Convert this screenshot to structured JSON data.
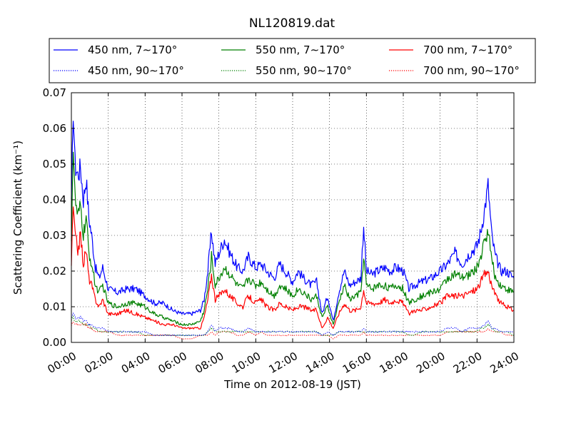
{
  "chart_data": {
    "type": "line",
    "title": "NL120819.dat",
    "xlabel": "Time on 2012-08-19 (JST)",
    "ylabel": "Scattering Coefficient (km⁻¹)",
    "xlim": [
      "00:00",
      "24:00"
    ],
    "ylim": [
      0,
      0.07
    ],
    "grid": true,
    "legend_position": "top, above plot, 3 columns",
    "x_ticks": [
      "00:00",
      "02:00",
      "04:00",
      "06:00",
      "08:00",
      "10:00",
      "12:00",
      "14:00",
      "16:00",
      "18:00",
      "20:00",
      "22:00",
      "24:00"
    ],
    "y_ticks": [
      "0.00",
      "0.01",
      "0.02",
      "0.03",
      "0.04",
      "0.05",
      "0.06",
      "0.07"
    ],
    "y_tick_values": [
      0,
      0.01,
      0.02,
      0.03,
      0.04,
      0.05,
      0.06,
      0.07
    ],
    "x_hours": [
      0,
      0.1,
      0.2,
      0.35,
      0.5,
      0.65,
      0.8,
      0.95,
      1.1,
      1.3,
      1.5,
      1.7,
      2,
      2.5,
      3,
      3.5,
      4,
      4.5,
      5,
      5.5,
      6,
      6.5,
      7,
      7.2,
      7.4,
      7.6,
      7.8,
      8,
      8.3,
      8.6,
      9,
      9.3,
      9.6,
      10,
      10.3,
      10.6,
      11,
      11.3,
      11.6,
      12,
      12.3,
      12.6,
      13,
      13.3,
      13.6,
      13.9,
      14.2,
      14.5,
      14.8,
      15.1,
      15.4,
      15.7,
      15.85,
      16,
      16.3,
      16.6,
      17,
      17.3,
      17.6,
      18,
      18.3,
      18.6,
      19,
      19.5,
      20,
      20.4,
      20.8,
      21.2,
      21.6,
      22,
      22.2,
      22.4,
      22.6,
      22.8,
      23,
      23.3,
      23.6,
      24
    ],
    "series": [
      {
        "name": "450 nm, 7∼170°",
        "color": "#0000ff",
        "linestyle": "solid",
        "values": [
          0.038,
          0.066,
          0.05,
          0.047,
          0.049,
          0.04,
          0.046,
          0.035,
          0.03,
          0.021,
          0.018,
          0.021,
          0.015,
          0.014,
          0.015,
          0.015,
          0.013,
          0.011,
          0.011,
          0.009,
          0.008,
          0.008,
          0.009,
          0.012,
          0.02,
          0.031,
          0.022,
          0.025,
          0.029,
          0.025,
          0.021,
          0.02,
          0.024,
          0.021,
          0.022,
          0.02,
          0.018,
          0.022,
          0.02,
          0.017,
          0.02,
          0.018,
          0.016,
          0.017,
          0.008,
          0.013,
          0.006,
          0.014,
          0.02,
          0.016,
          0.017,
          0.018,
          0.033,
          0.02,
          0.019,
          0.02,
          0.021,
          0.02,
          0.021,
          0.02,
          0.015,
          0.016,
          0.017,
          0.018,
          0.02,
          0.022,
          0.025,
          0.022,
          0.025,
          0.027,
          0.031,
          0.037,
          0.044,
          0.03,
          0.024,
          0.02,
          0.02,
          0.018
        ]
      },
      {
        "name": "550 nm, 7∼170°",
        "color": "#008000",
        "linestyle": "solid",
        "values": [
          0.03,
          0.055,
          0.04,
          0.035,
          0.038,
          0.03,
          0.035,
          0.025,
          0.022,
          0.016,
          0.014,
          0.016,
          0.011,
          0.01,
          0.011,
          0.011,
          0.01,
          0.008,
          0.007,
          0.006,
          0.005,
          0.005,
          0.006,
          0.009,
          0.015,
          0.024,
          0.016,
          0.018,
          0.021,
          0.019,
          0.016,
          0.015,
          0.018,
          0.016,
          0.017,
          0.015,
          0.013,
          0.016,
          0.015,
          0.013,
          0.015,
          0.014,
          0.012,
          0.013,
          0.007,
          0.01,
          0.005,
          0.011,
          0.016,
          0.012,
          0.013,
          0.014,
          0.024,
          0.016,
          0.015,
          0.016,
          0.016,
          0.015,
          0.016,
          0.015,
          0.011,
          0.012,
          0.013,
          0.014,
          0.015,
          0.018,
          0.019,
          0.018,
          0.019,
          0.021,
          0.024,
          0.028,
          0.032,
          0.023,
          0.018,
          0.016,
          0.015,
          0.014
        ]
      },
      {
        "name": "700 nm, 7∼170°",
        "color": "#ff0000",
        "linestyle": "solid",
        "values": [
          0.022,
          0.038,
          0.03,
          0.026,
          0.03,
          0.022,
          0.026,
          0.018,
          0.016,
          0.012,
          0.01,
          0.012,
          0.008,
          0.008,
          0.009,
          0.008,
          0.007,
          0.006,
          0.005,
          0.005,
          0.004,
          0.004,
          0.004,
          0.007,
          0.012,
          0.019,
          0.012,
          0.013,
          0.015,
          0.013,
          0.011,
          0.01,
          0.013,
          0.011,
          0.012,
          0.01,
          0.009,
          0.011,
          0.01,
          0.009,
          0.01,
          0.01,
          0.009,
          0.009,
          0.004,
          0.007,
          0.004,
          0.008,
          0.011,
          0.009,
          0.009,
          0.01,
          0.015,
          0.011,
          0.011,
          0.011,
          0.012,
          0.011,
          0.012,
          0.011,
          0.008,
          0.009,
          0.009,
          0.01,
          0.011,
          0.013,
          0.013,
          0.013,
          0.014,
          0.015,
          0.017,
          0.019,
          0.02,
          0.016,
          0.013,
          0.011,
          0.01,
          0.009
        ]
      },
      {
        "name": "450 nm, 90∼170°",
        "color": "#0000ff",
        "linestyle": "dotted",
        "values": [
          0.007,
          0.008,
          0.007,
          0.007,
          0.007,
          0.006,
          0.006,
          0.005,
          0.005,
          0.004,
          0.004,
          0.004,
          0.003,
          0.003,
          0.003,
          0.003,
          0.003,
          0.002,
          0.002,
          0.002,
          0.002,
          0.002,
          0.002,
          0.002,
          0.003,
          0.005,
          0.003,
          0.004,
          0.004,
          0.004,
          0.003,
          0.003,
          0.004,
          0.003,
          0.003,
          0.003,
          0.003,
          0.003,
          0.003,
          0.003,
          0.003,
          0.003,
          0.003,
          0.003,
          0.002,
          0.003,
          0.002,
          0.003,
          0.003,
          0.003,
          0.003,
          0.003,
          0.004,
          0.003,
          0.003,
          0.003,
          0.003,
          0.003,
          0.003,
          0.003,
          0.003,
          0.003,
          0.003,
          0.003,
          0.003,
          0.004,
          0.004,
          0.003,
          0.004,
          0.004,
          0.004,
          0.005,
          0.006,
          0.004,
          0.004,
          0.003,
          0.003,
          0.003
        ]
      },
      {
        "name": "550 nm, 90∼170°",
        "color": "#008000",
        "linestyle": "dotted",
        "values": [
          0.006,
          0.007,
          0.006,
          0.006,
          0.006,
          0.005,
          0.005,
          0.005,
          0.004,
          0.004,
          0.003,
          0.003,
          0.003,
          0.003,
          0.003,
          0.003,
          0.002,
          0.002,
          0.002,
          0.002,
          0.002,
          0.002,
          0.002,
          0.002,
          0.003,
          0.004,
          0.003,
          0.003,
          0.003,
          0.003,
          0.003,
          0.003,
          0.003,
          0.003,
          0.003,
          0.003,
          0.003,
          0.003,
          0.003,
          0.003,
          0.003,
          0.003,
          0.003,
          0.003,
          0.002,
          0.002,
          0.002,
          0.003,
          0.003,
          0.003,
          0.003,
          0.003,
          0.003,
          0.003,
          0.003,
          0.003,
          0.003,
          0.003,
          0.003,
          0.003,
          0.002,
          0.002,
          0.003,
          0.003,
          0.003,
          0.003,
          0.003,
          0.003,
          0.003,
          0.003,
          0.004,
          0.004,
          0.005,
          0.004,
          0.003,
          0.003,
          0.003,
          0.002
        ]
      },
      {
        "name": "700 nm, 90∼170°",
        "color": "#ff0000",
        "linestyle": "dotted",
        "values": [
          0.005,
          0.006,
          0.005,
          0.005,
          0.005,
          0.005,
          0.005,
          0.004,
          0.004,
          0.003,
          0.003,
          0.003,
          0.003,
          0.002,
          0.002,
          0.002,
          0.002,
          0.002,
          0.002,
          0.002,
          0.001,
          0.001,
          0.002,
          0.002,
          0.002,
          0.003,
          0.002,
          0.003,
          0.003,
          0.003,
          0.002,
          0.002,
          0.003,
          0.002,
          0.003,
          0.002,
          0.002,
          0.002,
          0.002,
          0.002,
          0.002,
          0.002,
          0.002,
          0.002,
          0.002,
          0.002,
          0.001,
          0.002,
          0.002,
          0.002,
          0.002,
          0.002,
          0.003,
          0.002,
          0.002,
          0.002,
          0.002,
          0.002,
          0.002,
          0.002,
          0.002,
          0.002,
          0.002,
          0.002,
          0.002,
          0.003,
          0.003,
          0.003,
          0.003,
          0.003,
          0.003,
          0.003,
          0.004,
          0.003,
          0.003,
          0.003,
          0.002,
          0.002
        ]
      }
    ]
  }
}
